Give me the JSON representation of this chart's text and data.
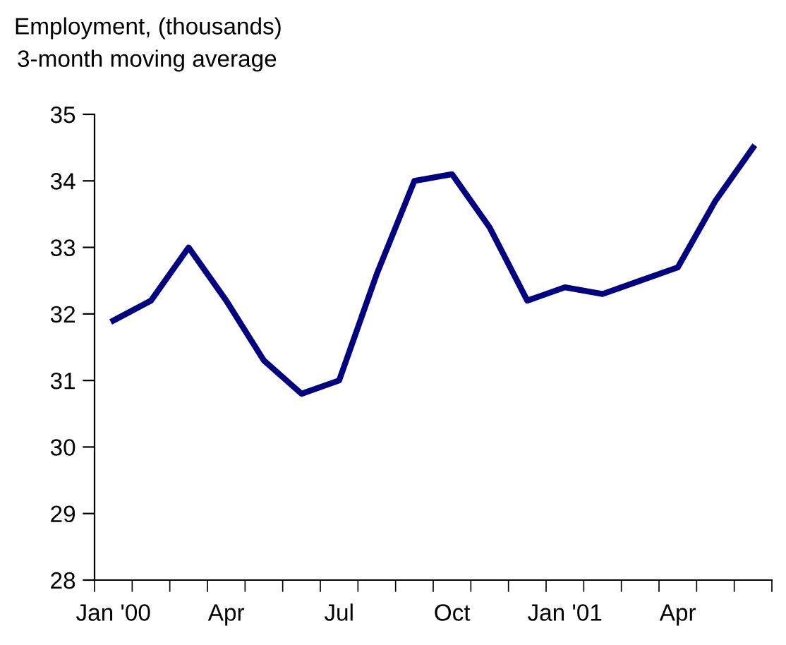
{
  "chart_data": {
    "type": "line",
    "title": "Employment, (thousands)",
    "subtitle": "3-month moving average",
    "categories": [
      "Jan '00",
      null,
      null,
      "Apr",
      null,
      null,
      "Jul",
      null,
      null,
      "Oct",
      null,
      null,
      "Jan '01",
      null,
      null,
      "Apr",
      null,
      null
    ],
    "series": [
      {
        "color": "#000080",
        "values": [
          31.9,
          32.2,
          33.0,
          32.2,
          31.3,
          30.8,
          31.0,
          32.6,
          34.0,
          34.1,
          33.3,
          32.2,
          32.4,
          32.3,
          32.5,
          32.7,
          33.7,
          34.5
        ]
      }
    ],
    "ylim": [
      28,
      35
    ],
    "yticks": [
      28,
      29,
      30,
      31,
      32,
      33,
      34,
      35
    ],
    "grid": false,
    "marker": "none",
    "line_style": "solid"
  }
}
